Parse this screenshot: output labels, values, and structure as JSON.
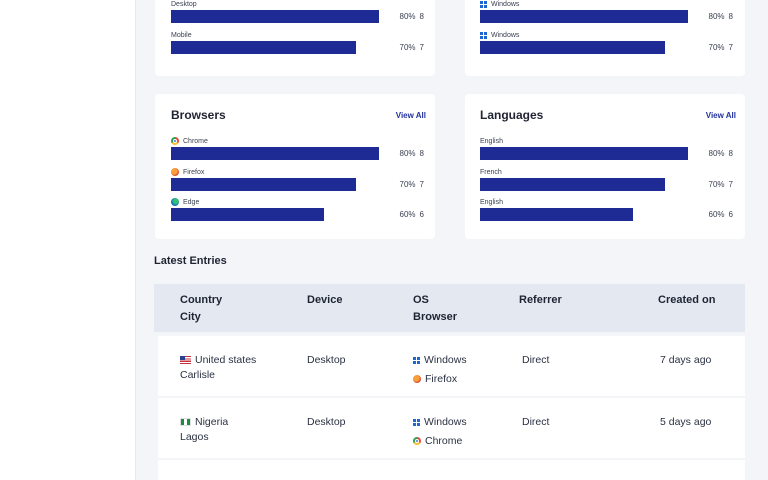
{
  "devices": {
    "rows": [
      {
        "label": "Desktop",
        "pct": "80%",
        "count": "8",
        "fill": 0.8
      },
      {
        "label": "Mobile",
        "pct": "70%",
        "count": "7",
        "fill": 0.7
      }
    ]
  },
  "os": {
    "rows": [
      {
        "label": "Windows",
        "icon": "windows-icon",
        "pct": "80%",
        "count": "8",
        "fill": 0.8
      },
      {
        "label": "Windows",
        "icon": "windows-icon",
        "pct": "70%",
        "count": "7",
        "fill": 0.7
      }
    ]
  },
  "browsers": {
    "title": "Browsers",
    "view_all": "View All",
    "rows": [
      {
        "label": "Chrome",
        "icon": "chrome-icon",
        "pct": "80%",
        "count": "8",
        "fill": 0.8
      },
      {
        "label": "Firefox",
        "icon": "firefox-icon",
        "pct": "70%",
        "count": "7",
        "fill": 0.7
      },
      {
        "label": "Edge",
        "icon": "edge-icon",
        "pct": "60%",
        "count": "6",
        "fill": 0.6
      }
    ]
  },
  "languages": {
    "title": "Languages",
    "view_all": "View All",
    "rows": [
      {
        "label": "English",
        "pct": "80%",
        "count": "8",
        "fill": 0.8
      },
      {
        "label": "French",
        "pct": "70%",
        "count": "7",
        "fill": 0.7
      },
      {
        "label": "English",
        "pct": "60%",
        "count": "6",
        "fill": 0.6
      }
    ]
  },
  "latest": {
    "title": "Latest Entries",
    "headers": {
      "country": "Country",
      "city": "City",
      "device": "Device",
      "os": "OS",
      "browser": "Browser",
      "referrer": "Referrer",
      "created": "Created on"
    },
    "rows": [
      {
        "country": "United states",
        "flag": "us-flag-icon",
        "city": "Carlisle",
        "device": "Desktop",
        "os": "Windows",
        "browser": "Firefox",
        "referrer": "Direct",
        "created": "7 days ago"
      },
      {
        "country": "Nigeria",
        "flag": "nigeria-flag-icon",
        "city": "Lagos",
        "device": "Desktop",
        "os": "Windows",
        "browser": "Chrome",
        "referrer": "Direct",
        "created": "5 days ago"
      }
    ]
  },
  "colors": {
    "bar": "#1e2b94",
    "accent": "#22329e",
    "table_header": "#e3e8f1"
  }
}
